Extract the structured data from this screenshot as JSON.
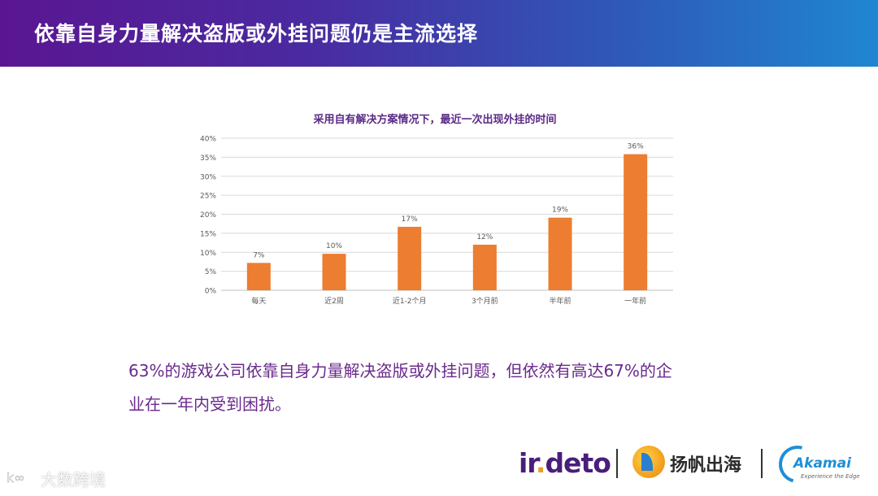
{
  "header": {
    "title": "依靠自身力量解决盗版或外挂问题仍是主流选择"
  },
  "chart_data": {
    "type": "bar",
    "title": "采用自有解决方案情况下，最近一次出现外挂的时间",
    "categories": [
      "每天",
      "近2周",
      "近1-2个月",
      "3个月前",
      "半年前",
      "一年前"
    ],
    "values": [
      7,
      10,
      17,
      12,
      19,
      36
    ],
    "data_labels": [
      "7%",
      "10%",
      "17%",
      "12%",
      "19%",
      "36%"
    ],
    "plotted_values": [
      7.2,
      9.6,
      16.7,
      12.0,
      19.1,
      35.8
    ],
    "yticks": [
      "0%",
      "5%",
      "10%",
      "15%",
      "20%",
      "25%",
      "30%",
      "35%",
      "40%"
    ],
    "ylim": [
      0,
      40
    ],
    "xlabel": "",
    "ylabel": "",
    "grid": true,
    "bar_color": "#ED7D31"
  },
  "summary": {
    "line1": "63%的游戏公司依靠自身力量解决盗版或外挂问题，但依然有高达67%的企",
    "line2": "业在一年内受到困扰。"
  },
  "logos": {
    "irdeto_a": "ir",
    "irdeto_dot": ".",
    "irdeto_b": "deto",
    "yangfan": "扬帆出海",
    "akamai": "Akamai",
    "akamai_tagline": "Experience the Edge"
  },
  "watermark": {
    "text": "大数跨境"
  }
}
